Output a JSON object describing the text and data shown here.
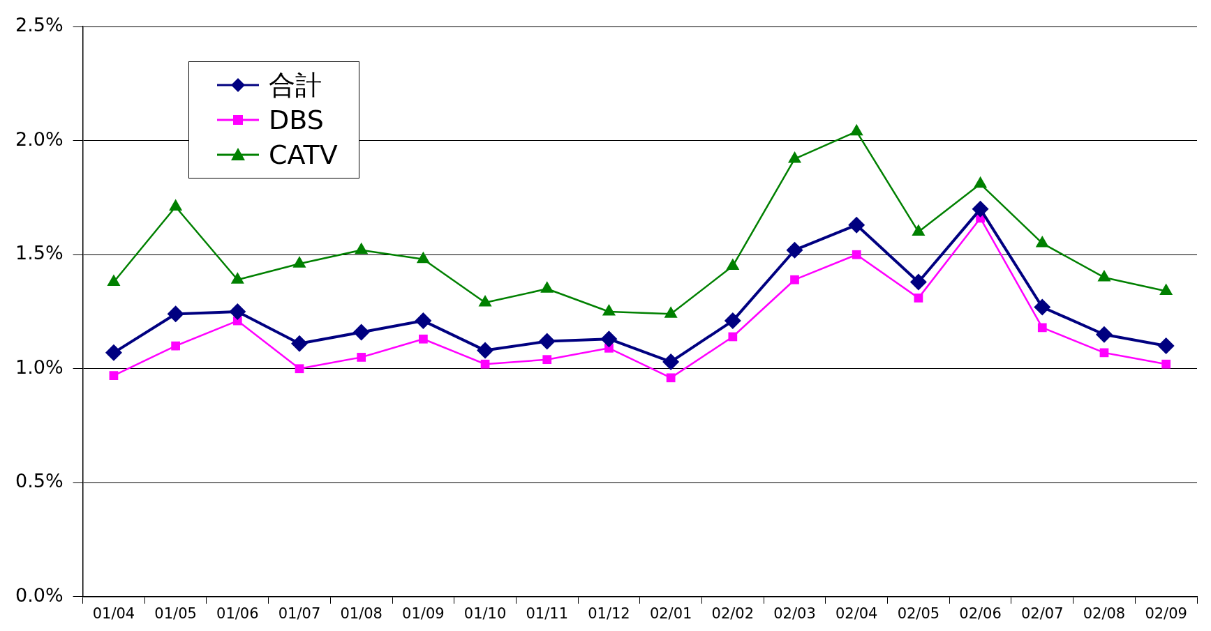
{
  "chart_data": {
    "type": "line",
    "categories": [
      "01/04",
      "01/05",
      "01/06",
      "01/07",
      "01/08",
      "01/09",
      "01/10",
      "01/11",
      "01/12",
      "02/01",
      "02/02",
      "02/03",
      "02/04",
      "02/05",
      "02/06",
      "02/07",
      "02/08",
      "02/09"
    ],
    "series": [
      {
        "name": "合計",
        "color": "#000080",
        "marker": "diamond",
        "values": [
          1.07,
          1.24,
          1.25,
          1.11,
          1.16,
          1.21,
          1.08,
          1.12,
          1.13,
          1.03,
          1.21,
          1.52,
          1.63,
          1.38,
          1.7,
          1.27,
          1.15,
          1.1
        ]
      },
      {
        "name": "DBS",
        "color": "#ff00ff",
        "marker": "square",
        "values": [
          0.97,
          1.1,
          1.21,
          1.0,
          1.05,
          1.13,
          1.02,
          1.04,
          1.09,
          0.96,
          1.14,
          1.39,
          1.5,
          1.31,
          1.66,
          1.18,
          1.07,
          1.02
        ]
      },
      {
        "name": "CATV",
        "color": "#008000",
        "marker": "triangle",
        "values": [
          1.38,
          1.71,
          1.39,
          1.46,
          1.52,
          1.48,
          1.29,
          1.35,
          1.25,
          1.24,
          1.45,
          1.92,
          2.04,
          1.6,
          1.81,
          1.55,
          1.4,
          1.34
        ]
      }
    ],
    "ylim": [
      0,
      2.5
    ],
    "yticks": [
      {
        "value": 0,
        "label": "0.0%"
      },
      {
        "value": 0.5,
        "label": "0.5%"
      },
      {
        "value": 1,
        "label": "1.0%"
      },
      {
        "value": 1.5,
        "label": "1.5%"
      },
      {
        "value": 2,
        "label": "2.0%"
      },
      {
        "value": 2.5,
        "label": "2.5%"
      }
    ],
    "grid": "y",
    "legend": "top left"
  }
}
